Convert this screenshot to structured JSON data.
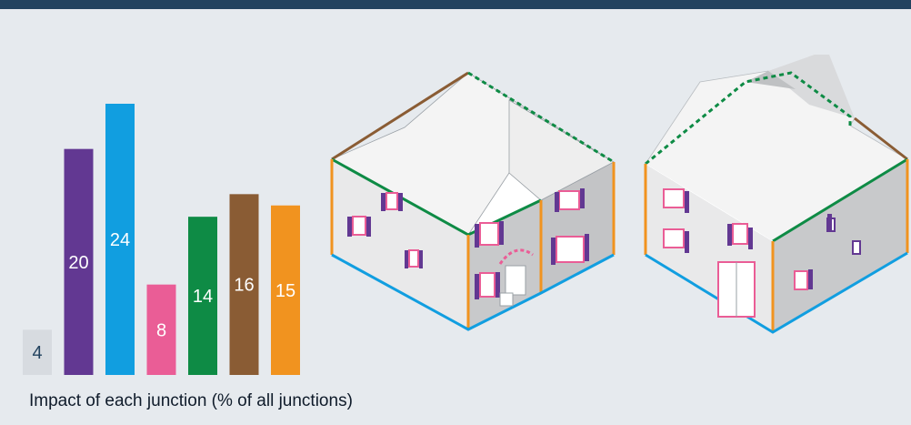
{
  "caption": "Impact of each junction (% of all junctions)",
  "chart_data": {
    "type": "bar",
    "categories": [
      "",
      "",
      "",
      "",
      "",
      "",
      ""
    ],
    "values": [
      4,
      20,
      24,
      8,
      14,
      16,
      15
    ],
    "colors": [
      "#d7dbe0",
      "#623892",
      "#119ee0",
      "#ea5d96",
      "#0e8b45",
      "#8a5c34",
      "#f1931f"
    ],
    "label_colors": [
      "#23435f",
      "#ffffff",
      "#ffffff",
      "#ffffff",
      "#ffffff",
      "#ffffff",
      "#ffffff"
    ],
    "title": "",
    "xlabel": "Impact of each junction (% of all junctions)",
    "ylabel": "",
    "ylim": [
      0,
      24
    ],
    "grid": false,
    "legend": "none"
  },
  "palette": {
    "roof": "#f5f5f5",
    "wall_light": "#e9e9ea",
    "wall_shade": "#c8c9cb",
    "window_frame": "#ea5d96",
    "shutter": "#623892",
    "ridge_eave": "#8a5c34",
    "wall_top": "#0e8b45",
    "corner": "#f1931f",
    "ground": "#119ee0"
  }
}
